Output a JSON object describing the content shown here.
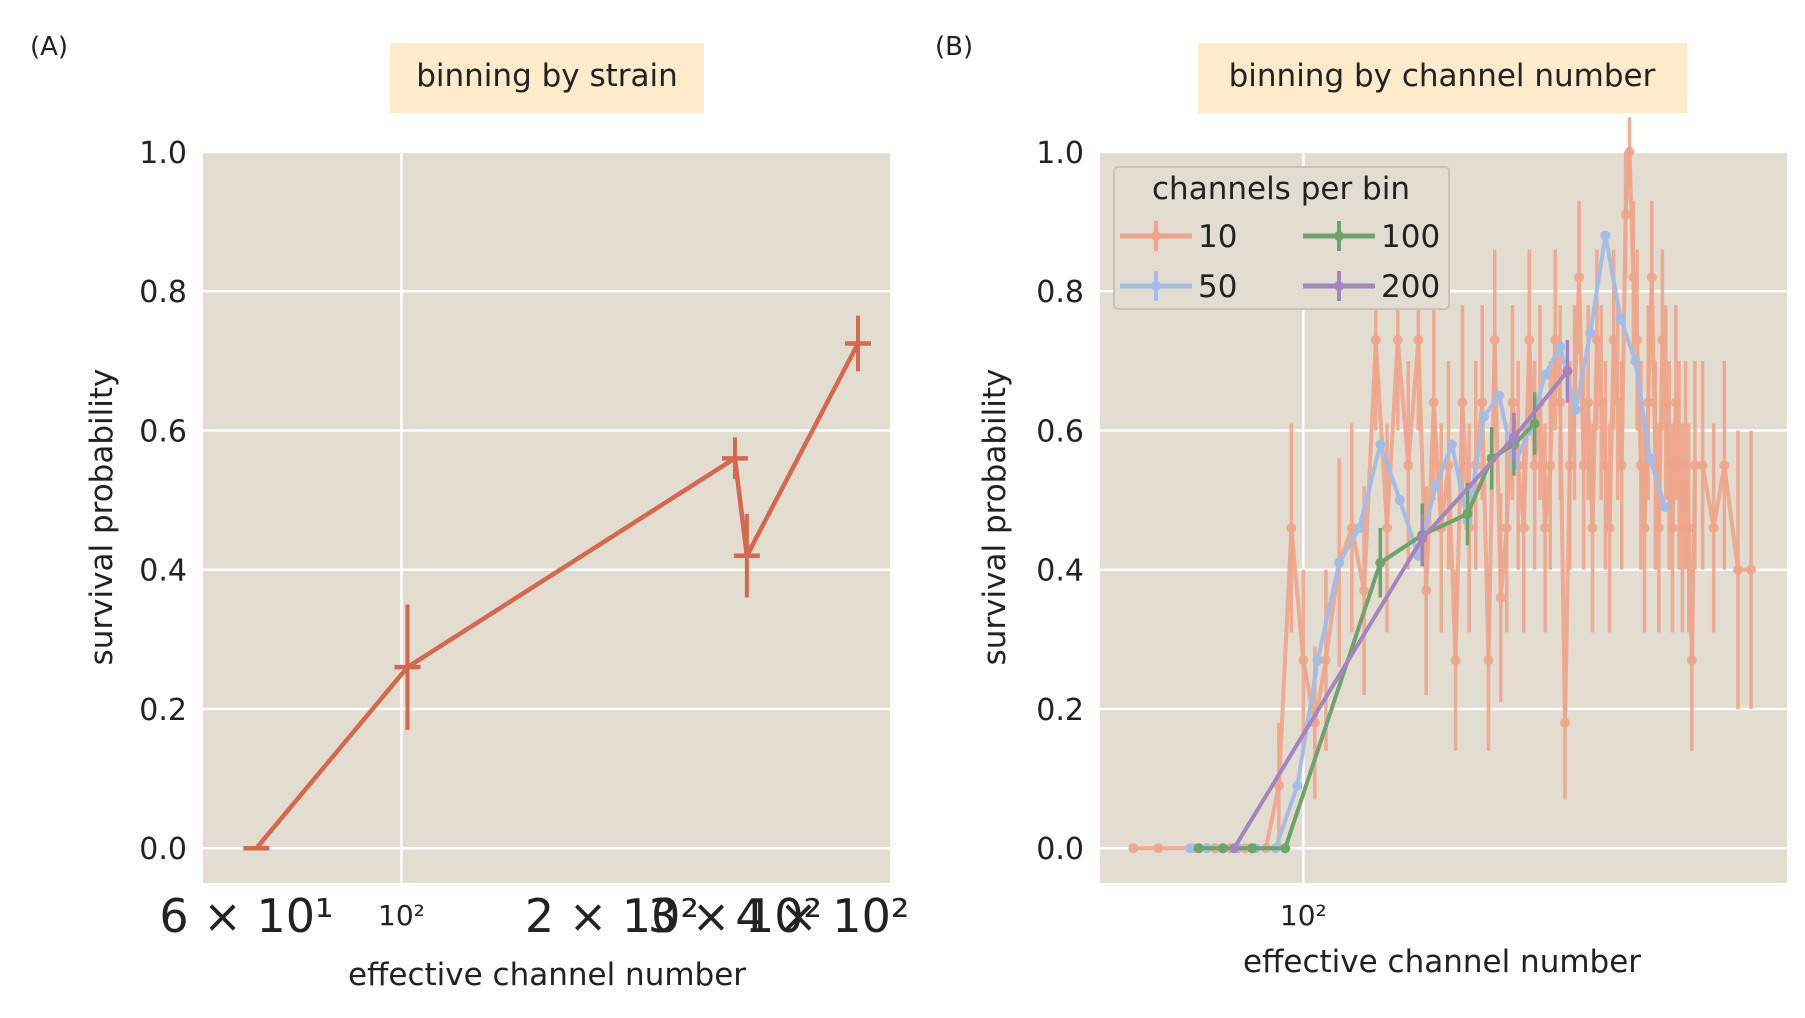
{
  "chart_data": [
    {
      "type": "line",
      "panel_label": "(A)",
      "title": "binning by strain",
      "xlabel": "effective channel number",
      "ylabel": "survival probability",
      "xscale": "log",
      "xlim": [
        52,
        500
      ],
      "ylim": [
        -0.05,
        1.0
      ],
      "yticks": [
        "0.0",
        "0.2",
        "0.4",
        "0.6",
        "0.8",
        "1.0"
      ],
      "xticks": [
        {
          "value": 60,
          "label": "6 × 10¹"
        },
        {
          "value": 100,
          "label": "10²"
        },
        {
          "value": 200,
          "label": "2 × 10²"
        },
        {
          "value": 300,
          "label": "3 × 10²"
        },
        {
          "value": 400,
          "label": "4 × 10²"
        }
      ],
      "grid": true,
      "color": "#D4694F",
      "series": [
        {
          "x": [
            62,
            102,
            300,
            312,
            450
          ],
          "y": [
            0.0,
            0.26,
            0.56,
            0.42,
            0.725
          ],
          "yerr": [
            0.0,
            0.09,
            0.03,
            0.06,
            0.04
          ]
        }
      ]
    },
    {
      "type": "line",
      "panel_label": "(B)",
      "title": "binning by channel number",
      "xlabel": "effective channel number",
      "ylabel": "survival probability",
      "xscale": "log",
      "xlim": [
        50,
        520
      ],
      "ylim": [
        -0.05,
        1.0
      ],
      "yticks": [
        "0.0",
        "0.2",
        "0.4",
        "0.6",
        "0.8",
        "1.0"
      ],
      "xticks": [
        {
          "value": 100,
          "label": "10²"
        }
      ],
      "grid": true,
      "legend": {
        "title": "channels per bin",
        "placement": "top-left",
        "ncol": 2
      },
      "series": [
        {
          "name": "10",
          "color": "#EDA58C",
          "x": [
            56,
            61,
            69,
            72,
            74,
            76,
            78,
            80,
            82,
            84,
            88,
            92,
            96,
            100,
            104,
            108,
            113,
            118,
            123,
            128,
            133,
            138,
            143,
            148,
            152,
            156,
            160,
            164,
            168,
            172,
            176,
            180,
            184,
            188,
            192,
            196,
            200,
            204,
            208,
            212,
            216,
            220,
            224,
            228,
            232,
            236,
            240,
            244,
            248,
            252,
            256,
            260,
            264,
            268,
            272,
            276,
            280,
            284,
            288,
            292,
            296,
            300,
            304,
            308,
            312,
            316,
            320,
            324,
            328,
            332,
            336,
            340,
            344,
            348,
            352,
            356,
            360,
            364,
            368,
            372,
            376,
            380,
            390,
            405,
            420,
            440,
            460
          ],
          "y": [
            0.0,
            0.0,
            0.0,
            0.0,
            0.0,
            0.0,
            0.0,
            0.0,
            0.0,
            0.0,
            0.0,
            0.09,
            0.46,
            0.27,
            0.18,
            0.27,
            0.41,
            0.46,
            0.37,
            0.73,
            0.46,
            0.73,
            0.55,
            0.73,
            0.37,
            0.64,
            0.46,
            0.55,
            0.27,
            0.64,
            0.46,
            0.55,
            0.64,
            0.27,
            0.73,
            0.36,
            0.46,
            0.64,
            0.55,
            0.46,
            0.73,
            0.55,
            0.64,
            0.46,
            0.55,
            0.73,
            0.64,
            0.18,
            0.55,
            0.64,
            0.82,
            0.55,
            0.64,
            0.46,
            0.73,
            0.64,
            0.55,
            0.46,
            0.73,
            0.64,
            0.55,
            0.91,
            1.0,
            0.82,
            0.73,
            0.55,
            0.46,
            0.64,
            0.82,
            0.55,
            0.46,
            0.73,
            0.64,
            0.55,
            0.46,
            0.64,
            0.55,
            0.46,
            0.55,
            0.46,
            0.27,
            0.55,
            0.55,
            0.46,
            0.55,
            0.4,
            0.4
          ],
          "yerr": [
            0.0,
            0.0,
            0.0,
            0.0,
            0.0,
            0.0,
            0.0,
            0.0,
            0.0,
            0.0,
            0.0,
            0.09,
            0.15,
            0.13,
            0.11,
            0.13,
            0.15,
            0.15,
            0.15,
            0.13,
            0.15,
            0.13,
            0.15,
            0.13,
            0.15,
            0.14,
            0.15,
            0.15,
            0.13,
            0.14,
            0.15,
            0.15,
            0.14,
            0.13,
            0.13,
            0.15,
            0.15,
            0.14,
            0.15,
            0.15,
            0.13,
            0.15,
            0.14,
            0.15,
            0.15,
            0.13,
            0.14,
            0.11,
            0.15,
            0.14,
            0.11,
            0.15,
            0.14,
            0.15,
            0.13,
            0.14,
            0.15,
            0.15,
            0.13,
            0.14,
            0.15,
            0.09,
            0.05,
            0.11,
            0.13,
            0.15,
            0.15,
            0.14,
            0.11,
            0.15,
            0.15,
            0.13,
            0.14,
            0.15,
            0.15,
            0.14,
            0.15,
            0.15,
            0.15,
            0.15,
            0.13,
            0.15,
            0.15,
            0.15,
            0.15,
            0.2,
            0.2
          ]
        },
        {
          "name": "50",
          "color": "#A3BDE6",
          "x": [
            68,
            72,
            76,
            80,
            85,
            91,
            98,
            105,
            113,
            121,
            130,
            139,
            148,
            157,
            166,
            175,
            185,
            195,
            205,
            216,
            228,
            240,
            253,
            266,
            280,
            295,
            310,
            326,
            343
          ],
          "y": [
            0.0,
            0.0,
            0.0,
            0.0,
            0.0,
            0.0,
            0.09,
            0.27,
            0.41,
            0.46,
            0.58,
            0.5,
            0.42,
            0.52,
            0.58,
            0.47,
            0.62,
            0.65,
            0.55,
            0.6,
            0.68,
            0.72,
            0.63,
            0.74,
            0.88,
            0.76,
            0.7,
            0.56,
            0.49
          ]
        },
        {
          "name": "100",
          "color": "#6FA36B",
          "x": [
            70,
            76,
            84,
            94,
            130,
            150,
            175,
            190,
            205,
            220
          ],
          "y": [
            0.0,
            0.0,
            0.0,
            0.0,
            0.41,
            0.45,
            0.48,
            0.56,
            0.58,
            0.61
          ],
          "yerr": [
            0.0,
            0.0,
            0.0,
            0.0,
            0.05,
            0.045,
            0.045,
            0.045,
            0.045,
            0.045
          ]
        },
        {
          "name": "200",
          "color": "#A585BF",
          "x": [
            79,
            150,
            205,
            246
          ],
          "y": [
            0.0,
            0.445,
            0.59,
            0.685
          ],
          "yerr": [
            0.0,
            0.035,
            0.035,
            0.045
          ]
        }
      ]
    }
  ]
}
